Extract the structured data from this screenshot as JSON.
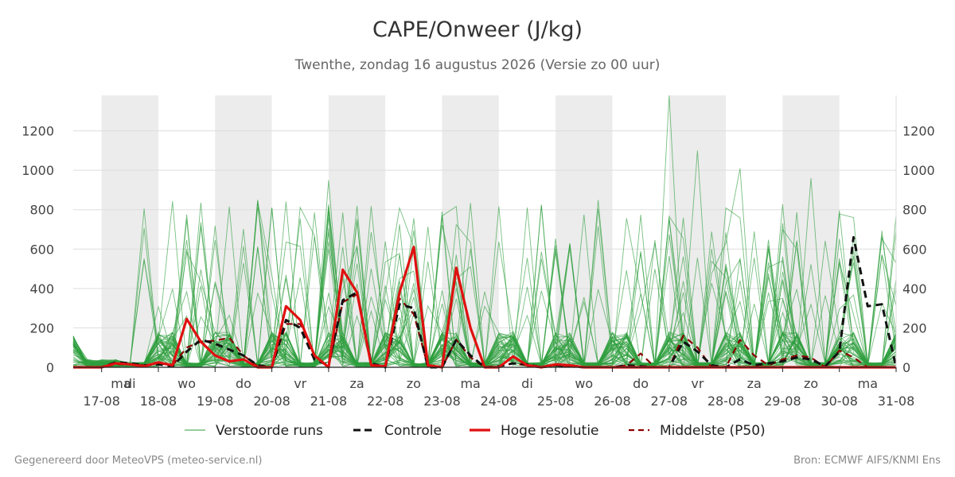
{
  "header": {
    "title": "CAPE/Onweer (J/kg)",
    "subtitle": "Twenthe, zondag 16 augustus 2026 (Versie zo 00 uur)"
  },
  "footer": {
    "left": "Gegenereerd door MeteoVPS (meteo-service.nl)",
    "right": "Bron: ECMWF AIFS/KNMI Ens"
  },
  "chart_data": {
    "type": "line",
    "x_start": "16-08 12:00",
    "x_end": "31-08 00:00",
    "x_step_hours": 6,
    "ylim": [
      0,
      1380
    ],
    "yticks": [
      0,
      200,
      400,
      600,
      800,
      1000,
      1200
    ],
    "grid": true,
    "day_labels": [
      {
        "weekday": "ma",
        "date": "17-08"
      },
      {
        "weekday": "di",
        "date": "18-08"
      },
      {
        "weekday": "wo",
        "date": "19-08"
      },
      {
        "weekday": "do",
        "date": "20-08"
      },
      {
        "weekday": "vr",
        "date": "21-08"
      },
      {
        "weekday": "za",
        "date": "22-08"
      },
      {
        "weekday": "zo",
        "date": "23-08"
      },
      {
        "weekday": "ma",
        "date": "24-08"
      },
      {
        "weekday": "di",
        "date": "25-08"
      },
      {
        "weekday": "wo",
        "date": "26-08"
      },
      {
        "weekday": "do",
        "date": "27-08"
      },
      {
        "weekday": "vr",
        "date": "28-08"
      },
      {
        "weekday": "za",
        "date": "29-08"
      },
      {
        "weekday": "zo",
        "date": "30-08"
      },
      {
        "weekday": "ma",
        "date": "31-08"
      }
    ],
    "shaded_days": [
      "17-08",
      "19-08",
      "21-08",
      "23-08",
      "25-08",
      "27-08",
      "29-08"
    ],
    "legend": {
      "placement": "bottom",
      "ensemble": "Verstoorde runs",
      "control": "Controle",
      "hires": "Hoge resolutie",
      "p50": "Middelste (P50)"
    },
    "colors": {
      "ensemble": "#2e9e3e",
      "control": "#111111",
      "hires": "#e01010",
      "p50": "#8b0000",
      "shade": "#ececec",
      "grid": "#dddddd"
    },
    "series": [
      {
        "name": "Hoge resolutie",
        "style": "solid",
        "values": [
          0,
          0,
          0,
          20,
          15,
          5,
          25,
          10,
          245,
          130,
          60,
          30,
          40,
          0,
          0,
          310,
          240,
          60,
          0,
          495,
          380,
          10,
          5,
          380,
          610,
          10,
          0,
          505,
          200,
          0,
          0,
          55,
          10,
          0,
          15,
          10,
          0,
          0,
          0,
          0,
          0,
          0,
          0,
          0,
          0,
          0,
          0,
          0,
          0,
          0,
          0,
          0,
          0,
          0,
          0,
          0,
          0,
          0,
          0
        ]
      },
      {
        "name": "Controle",
        "style": "dash",
        "values": [
          0,
          0,
          0,
          25,
          20,
          10,
          15,
          5,
          80,
          140,
          120,
          90,
          60,
          10,
          0,
          240,
          200,
          40,
          10,
          340,
          380,
          20,
          0,
          320,
          300,
          0,
          0,
          140,
          60,
          0,
          5,
          20,
          15,
          0,
          10,
          5,
          0,
          0,
          0,
          10,
          5,
          0,
          0,
          130,
          80,
          10,
          0,
          40,
          10,
          20,
          30,
          50,
          40,
          5,
          80,
          660,
          310,
          320,
          0
        ]
      },
      {
        "name": "Middelste (P50)",
        "style": "dash",
        "values": [
          0,
          0,
          0,
          15,
          15,
          10,
          20,
          10,
          100,
          130,
          135,
          150,
          60,
          5,
          0,
          220,
          220,
          60,
          0,
          330,
          370,
          20,
          0,
          350,
          270,
          5,
          0,
          140,
          50,
          0,
          5,
          20,
          10,
          0,
          10,
          5,
          0,
          0,
          0,
          10,
          70,
          0,
          0,
          160,
          100,
          0,
          0,
          140,
          60,
          10,
          40,
          60,
          50,
          0,
          85,
          50,
          0,
          0,
          0
        ]
      }
    ]
  }
}
